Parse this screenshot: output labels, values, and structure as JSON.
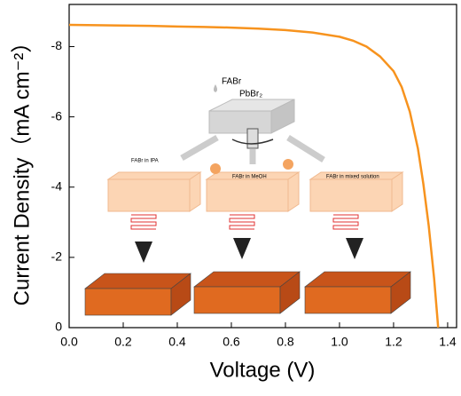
{
  "chart_data": {
    "type": "line",
    "xlabel": "Voltage (V)",
    "ylabel": "Current Density（mA cm⁻²）",
    "x": [
      0,
      0.1,
      0.2,
      0.3,
      0.4,
      0.5,
      0.6,
      0.7,
      0.8,
      0.9,
      1.0,
      1.05,
      1.1,
      1.15,
      1.2,
      1.23,
      1.26,
      1.29,
      1.31,
      1.33,
      1.35,
      1.365
    ],
    "series": [
      {
        "color": "#f7931e",
        "values": [
          -8.62,
          -8.61,
          -8.6,
          -8.59,
          -8.57,
          -8.56,
          -8.54,
          -8.51,
          -8.47,
          -8.4,
          -8.28,
          -8.17,
          -8.0,
          -7.72,
          -7.3,
          -6.85,
          -6.15,
          -5.1,
          -4.1,
          -2.9,
          -1.4,
          0
        ]
      }
    ],
    "xlim": [
      0,
      1.433
    ],
    "ylim": [
      0,
      -9.2
    ],
    "xticks": [
      {
        "value": 0,
        "label": "0.0"
      },
      0.2,
      0.4,
      0.6,
      0.8,
      {
        "value": 1,
        "label": "1.0"
      },
      1.2,
      1.4
    ],
    "yticks": [
      0,
      -2,
      -4,
      -6,
      -8
    ]
  },
  "inset": {
    "precursor": "FABr",
    "film": "PbBr₂",
    "routes": [
      "FABr in IPA",
      "FABr in MeOH",
      "FABr in mixed solution"
    ]
  }
}
